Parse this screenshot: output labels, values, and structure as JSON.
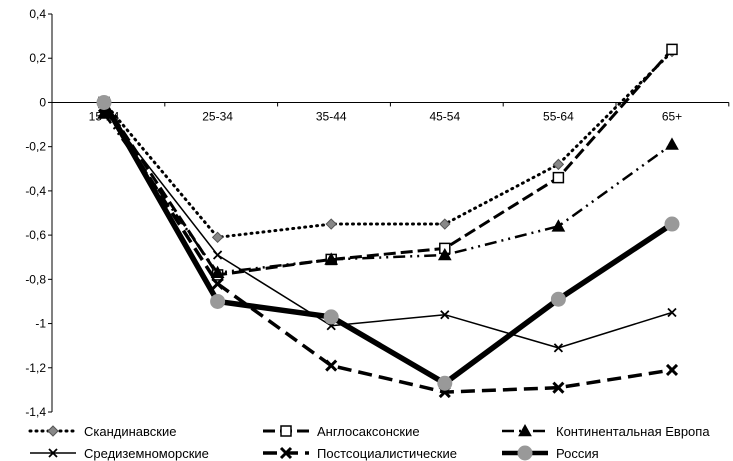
{
  "chart_data": {
    "type": "line",
    "title": "",
    "xlabel": "",
    "ylabel": "",
    "categories": [
      "15-24",
      "25-34",
      "35-44",
      "45-54",
      "55-64",
      "65+"
    ],
    "ylim": [
      -1.4,
      0.4
    ],
    "yticks": [
      0.4,
      0.2,
      0,
      -0.2,
      -0.4,
      -0.6,
      -0.8,
      -1,
      -1.2,
      -1.4
    ],
    "ytick_labels": [
      "0,4",
      "0,2",
      "0",
      "-0,2",
      "-0,4",
      "-0,6",
      "-0,8",
      "-1",
      "-1,2",
      "-1,4"
    ],
    "grid": false,
    "legend_position": "bottom",
    "series": [
      {
        "name": "Скандинавские",
        "values": [
          0,
          -0.61,
          -0.55,
          -0.55,
          -0.28,
          0.23
        ]
      },
      {
        "name": "Англосаксонские",
        "values": [
          0,
          -0.78,
          -0.71,
          -0.66,
          -0.34,
          0.24
        ]
      },
      {
        "name": "Континентальная Европа",
        "values": [
          -0.05,
          -0.77,
          -0.71,
          -0.69,
          -0.56,
          -0.19
        ]
      },
      {
        "name": "Средиземноморские",
        "values": [
          -0.03,
          -0.69,
          -1.01,
          -0.96,
          -1.11,
          -0.95
        ]
      },
      {
        "name": "Постсоциалистические",
        "values": [
          -0.02,
          -0.82,
          -1.19,
          -1.31,
          -1.29,
          -1.21
        ]
      },
      {
        "name": "Россия",
        "values": [
          0,
          -0.9,
          -0.97,
          -1.27,
          -0.89,
          -0.55
        ]
      }
    ]
  }
}
